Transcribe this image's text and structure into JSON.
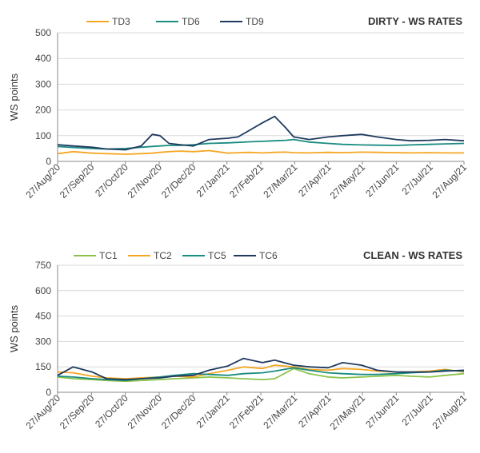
{
  "chart_data": [
    {
      "type": "line",
      "title": "DIRTY - WS RATES",
      "ylabel": "WS points",
      "xlabel": "",
      "ylim": [
        0,
        500
      ],
      "yticks": [
        0,
        100,
        200,
        300,
        400,
        500
      ],
      "grid": true,
      "legend": "top",
      "x_ticks": [
        "27/Aug/20",
        "27/Sep/20",
        "27/Oct/20",
        "27/Nov/20",
        "27/Dec/20",
        "27/Jan/21",
        "27/Feb/21",
        "27/Mar/21",
        "27/Apr/21",
        "27/May/21",
        "27/Jun/21",
        "27/Jul/21",
        "27/Aug/21"
      ],
      "x": [
        "2020-08-27",
        "2020-09-10",
        "2020-09-27",
        "2020-10-10",
        "2020-10-27",
        "2020-11-10",
        "2020-11-20",
        "2020-11-27",
        "2020-12-05",
        "2020-12-15",
        "2020-12-27",
        "2021-01-10",
        "2021-01-27",
        "2021-02-05",
        "2021-02-15",
        "2021-02-27",
        "2021-03-10",
        "2021-03-20",
        "2021-03-27",
        "2021-04-10",
        "2021-04-27",
        "2021-05-10",
        "2021-05-27",
        "2021-06-10",
        "2021-06-27",
        "2021-07-10",
        "2021-07-27",
        "2021-08-10",
        "2021-08-27"
      ],
      "series": [
        {
          "name": "TD3",
          "color": "#F5A623",
          "values": [
            30,
            38,
            32,
            30,
            28,
            30,
            32,
            35,
            38,
            40,
            38,
            42,
            32,
            34,
            35,
            33,
            35,
            36,
            34,
            33,
            35,
            34,
            36,
            35,
            34,
            33,
            34,
            33,
            33
          ]
        },
        {
          "name": "TD6",
          "color": "#1A8C80",
          "values": [
            58,
            54,
            50,
            48,
            50,
            55,
            58,
            60,
            62,
            62,
            65,
            70,
            72,
            74,
            76,
            78,
            80,
            82,
            85,
            75,
            70,
            66,
            64,
            63,
            62,
            64,
            66,
            68,
            70
          ]
        },
        {
          "name": "TD9",
          "color": "#1F3A5F",
          "values": [
            65,
            60,
            55,
            48,
            45,
            60,
            105,
            100,
            70,
            65,
            60,
            85,
            90,
            95,
            120,
            150,
            175,
            130,
            95,
            85,
            95,
            100,
            105,
            95,
            85,
            80,
            82,
            85,
            80
          ]
        }
      ]
    },
    {
      "type": "line",
      "title": "CLEAN - WS RATES",
      "ylabel": "WS points",
      "xlabel": "",
      "ylim": [
        0,
        750
      ],
      "yticks": [
        0,
        150,
        300,
        450,
        600,
        750
      ],
      "grid": true,
      "legend": "top",
      "x_ticks": [
        "27/Aug/20",
        "27/Sep/20",
        "27/Oct/20",
        "27/Nov/20",
        "27/Dec/20",
        "27/Jan/21",
        "27/Feb/21",
        "27/Mar/21",
        "27/Apr/21",
        "27/May/21",
        "27/Jun/21",
        "27/Jul/21",
        "27/Aug/21"
      ],
      "x": [
        "2020-08-27",
        "2020-09-10",
        "2020-09-27",
        "2020-10-10",
        "2020-10-27",
        "2020-11-10",
        "2020-11-27",
        "2020-12-10",
        "2020-12-27",
        "2021-01-10",
        "2021-01-27",
        "2021-02-10",
        "2021-02-27",
        "2021-03-10",
        "2021-03-27",
        "2021-04-10",
        "2021-04-27",
        "2021-05-10",
        "2021-05-27",
        "2021-06-10",
        "2021-06-27",
        "2021-07-10",
        "2021-07-27",
        "2021-08-10",
        "2021-08-27"
      ],
      "series": [
        {
          "name": "TC1",
          "color": "#8BC34A",
          "values": [
            90,
            80,
            75,
            70,
            65,
            70,
            75,
            80,
            85,
            90,
            85,
            80,
            75,
            80,
            140,
            110,
            90,
            85,
            90,
            95,
            100,
            95,
            90,
            100,
            110
          ]
        },
        {
          "name": "TC2",
          "color": "#F5A623",
          "values": [
            120,
            115,
            95,
            85,
            80,
            85,
            90,
            95,
            90,
            110,
            130,
            150,
            140,
            160,
            150,
            135,
            130,
            140,
            135,
            125,
            120,
            120,
            125,
            135,
            120
          ]
        },
        {
          "name": "TC5",
          "color": "#1A8C80",
          "values": [
            95,
            90,
            80,
            75,
            70,
            80,
            90,
            100,
            110,
            105,
            100,
            110,
            115,
            125,
            145,
            130,
            115,
            110,
            105,
            105,
            110,
            115,
            120,
            130,
            125
          ]
        },
        {
          "name": "TC6",
          "color": "#1F3A5F",
          "values": [
            100,
            150,
            120,
            80,
            75,
            80,
            85,
            95,
            100,
            130,
            155,
            200,
            175,
            190,
            160,
            150,
            145,
            175,
            160,
            130,
            120,
            120,
            120,
            125,
            130
          ]
        }
      ]
    }
  ]
}
